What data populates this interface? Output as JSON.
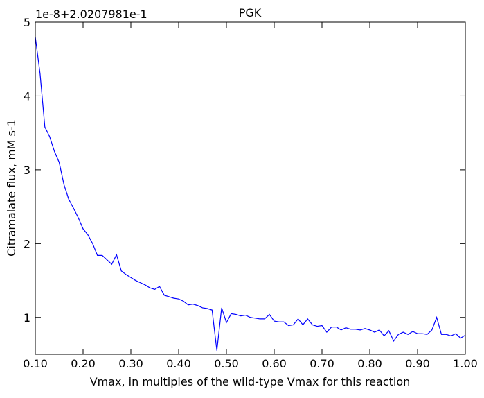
{
  "chart_data": {
    "type": "line",
    "title": "PGK",
    "x_label": "Vmax, in multiples of the wild-type Vmax for this reaction",
    "y_label": "Citramalate flux, mM s-1",
    "y_offset_text": "1e-8+2.0207981e-1",
    "x": [
      0.1,
      0.11,
      0.12,
      0.13,
      0.14,
      0.15,
      0.16,
      0.17,
      0.18,
      0.19,
      0.2,
      0.21,
      0.22,
      0.23,
      0.24,
      0.25,
      0.26,
      0.27,
      0.28,
      0.29,
      0.3,
      0.31,
      0.32,
      0.33,
      0.34,
      0.35,
      0.36,
      0.37,
      0.38,
      0.39,
      0.4,
      0.41,
      0.42,
      0.43,
      0.44,
      0.45,
      0.46,
      0.47,
      0.48,
      0.49,
      0.5,
      0.51,
      0.52,
      0.53,
      0.54,
      0.55,
      0.56,
      0.57,
      0.58,
      0.59,
      0.6,
      0.61,
      0.62,
      0.63,
      0.64,
      0.65,
      0.66,
      0.67,
      0.68,
      0.69,
      0.7,
      0.71,
      0.72,
      0.73,
      0.74,
      0.75,
      0.76,
      0.77,
      0.78,
      0.79,
      0.8,
      0.81,
      0.82,
      0.83,
      0.84,
      0.85,
      0.86,
      0.87,
      0.88,
      0.89,
      0.9,
      0.91,
      0.92,
      0.93,
      0.94,
      0.95,
      0.96,
      0.97,
      0.98,
      0.99,
      1.0
    ],
    "series": [
      {
        "name": "PGK",
        "color": "#0000ff",
        "values": [
          4.8,
          4.3,
          3.58,
          3.45,
          3.25,
          3.1,
          2.8,
          2.6,
          2.48,
          2.35,
          2.2,
          2.12,
          2.0,
          1.84,
          1.84,
          1.78,
          1.72,
          1.85,
          1.63,
          1.58,
          1.54,
          1.5,
          1.47,
          1.44,
          1.4,
          1.38,
          1.42,
          1.3,
          1.28,
          1.26,
          1.25,
          1.22,
          1.17,
          1.18,
          1.16,
          1.13,
          1.12,
          1.1,
          0.55,
          1.13,
          0.93,
          1.05,
          1.04,
          1.02,
          1.03,
          1.0,
          0.99,
          0.98,
          0.98,
          1.04,
          0.95,
          0.94,
          0.94,
          0.89,
          0.9,
          0.98,
          0.9,
          0.98,
          0.9,
          0.88,
          0.89,
          0.8,
          0.87,
          0.87,
          0.83,
          0.86,
          0.84,
          0.84,
          0.83,
          0.85,
          0.83,
          0.8,
          0.83,
          0.75,
          0.82,
          0.68,
          0.77,
          0.8,
          0.77,
          0.81,
          0.78,
          0.78,
          0.77,
          0.83,
          1.0,
          0.77,
          0.77,
          0.75,
          0.78,
          0.72,
          0.76
        ]
      }
    ],
    "xlim": [
      0.1,
      1.0
    ],
    "ylim": [
      0.5,
      5
    ],
    "xticks": [
      {
        "value": 0.1,
        "label": "0.10"
      },
      {
        "value": 0.2,
        "label": "0.20"
      },
      {
        "value": 0.3,
        "label": "0.30"
      },
      {
        "value": 0.4,
        "label": "0.40"
      },
      {
        "value": 0.5,
        "label": "0.50"
      },
      {
        "value": 0.6,
        "label": "0.60"
      },
      {
        "value": 0.7,
        "label": "0.70"
      },
      {
        "value": 0.8,
        "label": "0.80"
      },
      {
        "value": 0.9,
        "label": "0.90"
      },
      {
        "value": 1.0,
        "label": "1.00"
      }
    ],
    "yticks": [
      1,
      2,
      3,
      4,
      5
    ]
  }
}
